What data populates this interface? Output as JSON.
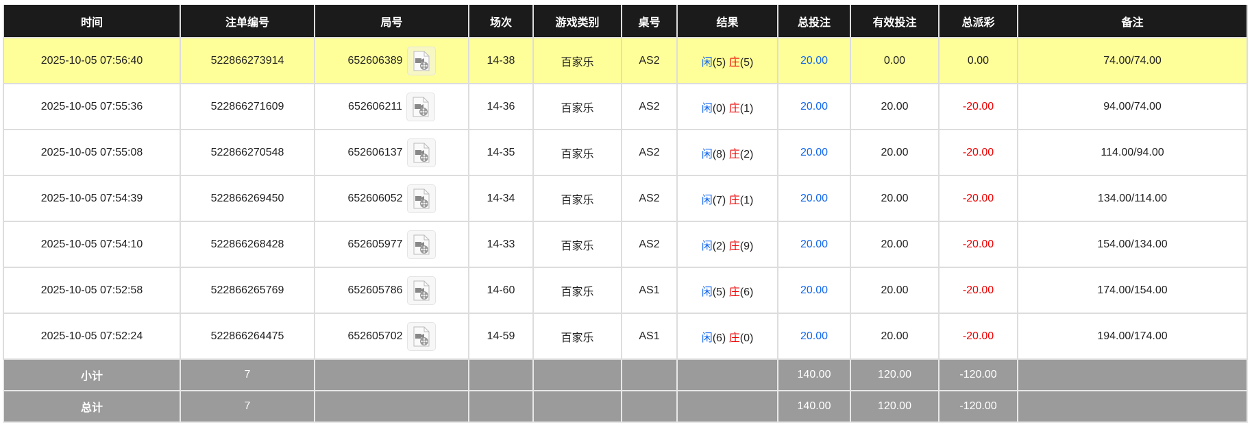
{
  "headers": [
    "时间",
    "注单编号",
    "局号",
    "场次",
    "游戏类别",
    "桌号",
    "结果",
    "总投注",
    "有效投注",
    "总派彩",
    "备注"
  ],
  "colors": {
    "header_bg": "#1b1b1b",
    "highlight_row": "#ffff99",
    "summary_bg": "#9b9b9b",
    "player": "#1166ee",
    "banker": "#ee0000",
    "negative": "#ee0000",
    "bet": "#1166ee"
  },
  "rows": [
    {
      "time": "2025-10-05 07:56:40",
      "order": "522866273914",
      "round": "652606389",
      "session": "14-38",
      "game": "百家乐",
      "table": "AS2",
      "player_label": "闲",
      "player_score": "(5)",
      "banker_label": "庄",
      "banker_score": "(5)",
      "bet": "20.00",
      "valid": "0.00",
      "payout": "0.00",
      "note": "74.00/74.00",
      "highlight": true
    },
    {
      "time": "2025-10-05 07:55:36",
      "order": "522866271609",
      "round": "652606211",
      "session": "14-36",
      "game": "百家乐",
      "table": "AS2",
      "player_label": "闲",
      "player_score": "(0)",
      "banker_label": "庄",
      "banker_score": "(1)",
      "bet": "20.00",
      "valid": "20.00",
      "payout": "-20.00",
      "note": "94.00/74.00"
    },
    {
      "time": "2025-10-05 07:55:08",
      "order": "522866270548",
      "round": "652606137",
      "session": "14-35",
      "game": "百家乐",
      "table": "AS2",
      "player_label": "闲",
      "player_score": "(8)",
      "banker_label": "庄",
      "banker_score": "(2)",
      "bet": "20.00",
      "valid": "20.00",
      "payout": "-20.00",
      "note": "114.00/94.00"
    },
    {
      "time": "2025-10-05 07:54:39",
      "order": "522866269450",
      "round": "652606052",
      "session": "14-34",
      "game": "百家乐",
      "table": "AS2",
      "player_label": "闲",
      "player_score": "(7)",
      "banker_label": "庄",
      "banker_score": "(1)",
      "bet": "20.00",
      "valid": "20.00",
      "payout": "-20.00",
      "note": "134.00/114.00"
    },
    {
      "time": "2025-10-05 07:54:10",
      "order": "522866268428",
      "round": "652605977",
      "session": "14-33",
      "game": "百家乐",
      "table": "AS2",
      "player_label": "闲",
      "player_score": "(2)",
      "banker_label": "庄",
      "banker_score": "(9)",
      "bet": "20.00",
      "valid": "20.00",
      "payout": "-20.00",
      "note": "154.00/134.00"
    },
    {
      "time": "2025-10-05 07:52:58",
      "order": "522866265769",
      "round": "652605786",
      "session": "14-60",
      "game": "百家乐",
      "table": "AS1",
      "player_label": "闲",
      "player_score": "(5)",
      "banker_label": "庄",
      "banker_score": "(6)",
      "bet": "20.00",
      "valid": "20.00",
      "payout": "-20.00",
      "note": "174.00/154.00"
    },
    {
      "time": "2025-10-05 07:52:24",
      "order": "522866264475",
      "round": "652605702",
      "session": "14-59",
      "game": "百家乐",
      "table": "AS1",
      "player_label": "闲",
      "player_score": "(6)",
      "banker_label": "庄",
      "banker_score": "(0)",
      "bet": "20.00",
      "valid": "20.00",
      "payout": "-20.00",
      "note": "194.00/174.00"
    }
  ],
  "subtotal": {
    "label": "小计",
    "count": "7",
    "bet": "140.00",
    "valid": "120.00",
    "payout": "-120.00"
  },
  "total": {
    "label": "总计",
    "count": "7",
    "bet": "140.00",
    "valid": "120.00",
    "payout": "-120.00"
  },
  "icons": {
    "replay": "video-file-icon"
  }
}
